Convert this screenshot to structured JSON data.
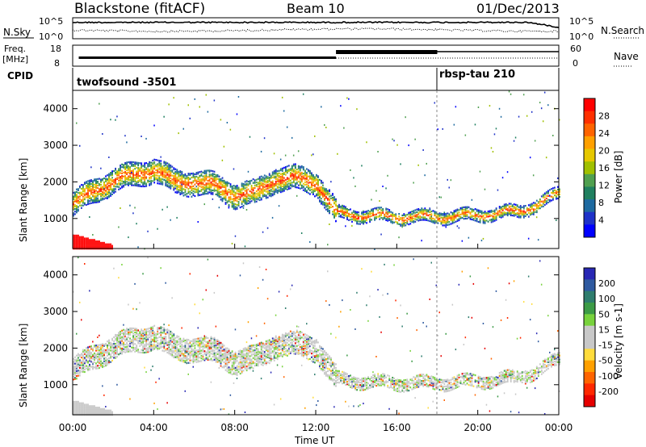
{
  "header": {
    "station": "Blackstone (fitACF)",
    "beam": "Beam 10",
    "date": "01/Dec/2013"
  },
  "top_panel": {
    "left_label": "N.Sky",
    "left_ticks": [
      "10^5",
      "10^0"
    ],
    "right_ticks": [
      "10^5",
      "10^0"
    ],
    "right_label": "N.Search"
  },
  "freq_panel": {
    "left_label_1": "Freq.",
    "left_label_2": "[MHz]",
    "left_ticks": [
      "18",
      "8"
    ],
    "right_ticks": [
      "60",
      "0"
    ],
    "right_label": "Nave"
  },
  "cpid_panel": {
    "label": "CPID",
    "program_1": "twofsound -3501",
    "program_2": "rbsp-tau 210"
  },
  "colorbars": {
    "power": {
      "label": "Power [dB]",
      "ticks": [
        "28",
        "24",
        "20",
        "16",
        "12",
        "8",
        "4"
      ],
      "colors": [
        "#ff0000",
        "#ff3000",
        "#ff6400",
        "#ffa000",
        "#e6c800",
        "#a0c000",
        "#50a050",
        "#208060",
        "#1e6aa0",
        "#1e32c8",
        "#0000ff"
      ]
    },
    "velocity": {
      "label": "Velocity [m s-1]",
      "ticks": [
        "200",
        "100",
        "50",
        "15",
        "-15",
        "-50",
        "-100",
        "-200"
      ],
      "colors": [
        "#2828b4",
        "#2f5aa0",
        "#2f7d6e",
        "#3c9b46",
        "#78d23c",
        "#c8c8c8",
        "#c8c8c8",
        "#ffdc3c",
        "#ffa000",
        "#ff6400",
        "#ff2800",
        "#e60000"
      ]
    }
  },
  "chart_data": [
    {
      "type": "heatmap",
      "title": "Power",
      "xlabel": "Time UT",
      "ylabel": "Slant Range [km]",
      "x_ticks": [
        "00:00",
        "04:00",
        "08:00",
        "12:00",
        "16:00",
        "20:00",
        "00:00"
      ],
      "y_ticks": [
        "1000",
        "2000",
        "3000",
        "4000"
      ],
      "xlim_hours": [
        0,
        24
      ],
      "ylim_km": [
        180,
        4500
      ],
      "main_echo_band": {
        "hours": [
          0,
          1,
          2,
          3,
          4,
          5,
          6,
          7,
          8,
          9,
          10,
          11,
          12,
          13,
          14,
          16,
          18,
          20,
          22,
          23,
          24
        ],
        "center_km": [
          1400,
          1750,
          2050,
          2200,
          2350,
          2000,
          2000,
          1900,
          1650,
          1700,
          2100,
          2100,
          2000,
          1150,
          1100,
          1050,
          1050,
          1100,
          1200,
          1400,
          1700
        ]
      }
    },
    {
      "type": "heatmap",
      "title": "Velocity",
      "xlabel": "Time UT",
      "ylabel": "Slant Range [km]",
      "x_ticks": [
        "00:00",
        "04:00",
        "08:00",
        "12:00",
        "16:00",
        "20:00",
        "00:00"
      ],
      "y_ticks": [
        "1000",
        "2000",
        "3000",
        "4000"
      ],
      "xlim_hours": [
        0,
        24
      ],
      "ylim_km": [
        180,
        4500
      ]
    }
  ]
}
